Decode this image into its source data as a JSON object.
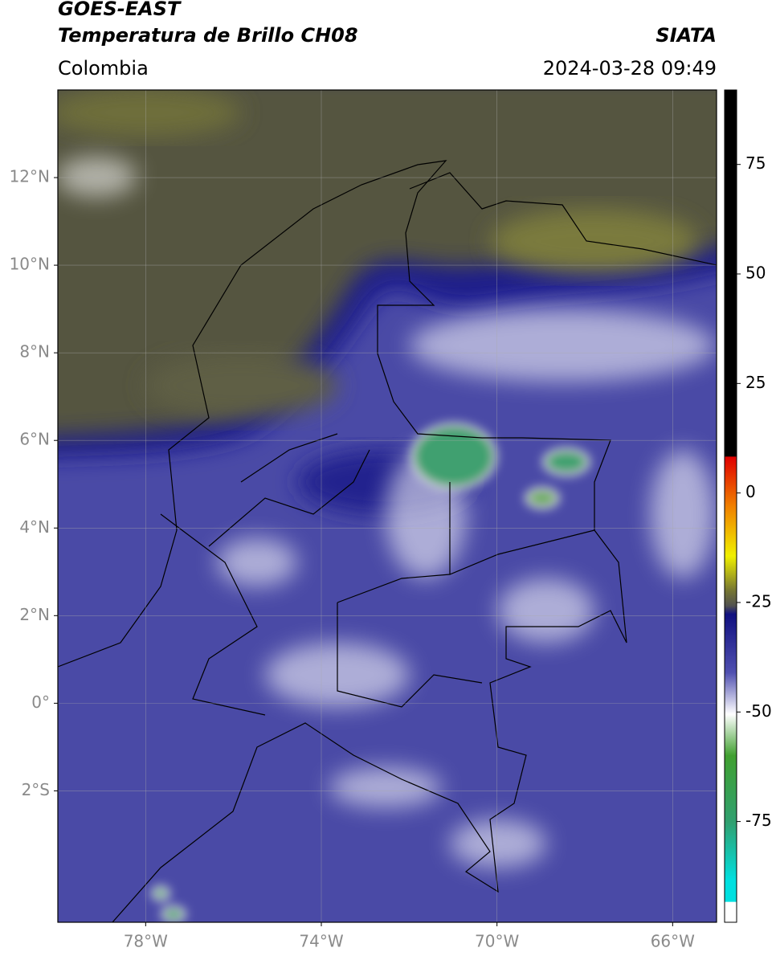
{
  "header": {
    "title": "GOES-EAST",
    "subtitle": "Temperatura de Brillo CH08",
    "region": "Colombia",
    "source": "SIATA",
    "datetime": "2024-03-28 09:49"
  },
  "map": {
    "xlim": [
      -80,
      -65
    ],
    "ylim": [
      -5,
      14
    ],
    "xticks": [
      {
        "value": -78,
        "label": "78°W"
      },
      {
        "value": -74,
        "label": "74°W"
      },
      {
        "value": -70,
        "label": "70°W"
      },
      {
        "value": -66,
        "label": "66°W"
      }
    ],
    "yticks": [
      {
        "value": 12,
        "label": "12°N"
      },
      {
        "value": 10,
        "label": "10°N"
      },
      {
        "value": 8,
        "label": "8°N"
      },
      {
        "value": 6,
        "label": "6°N"
      },
      {
        "value": 4,
        "label": "4°N"
      },
      {
        "value": 2,
        "label": "2°N"
      },
      {
        "value": 0,
        "label": "0°"
      },
      {
        "value": -2,
        "label": "2°S"
      }
    ],
    "grid": true
  },
  "colorbar": {
    "lim": [
      -98,
      92
    ],
    "ticks": [
      75,
      50,
      25,
      0,
      -25,
      -50,
      -75
    ]
  }
}
